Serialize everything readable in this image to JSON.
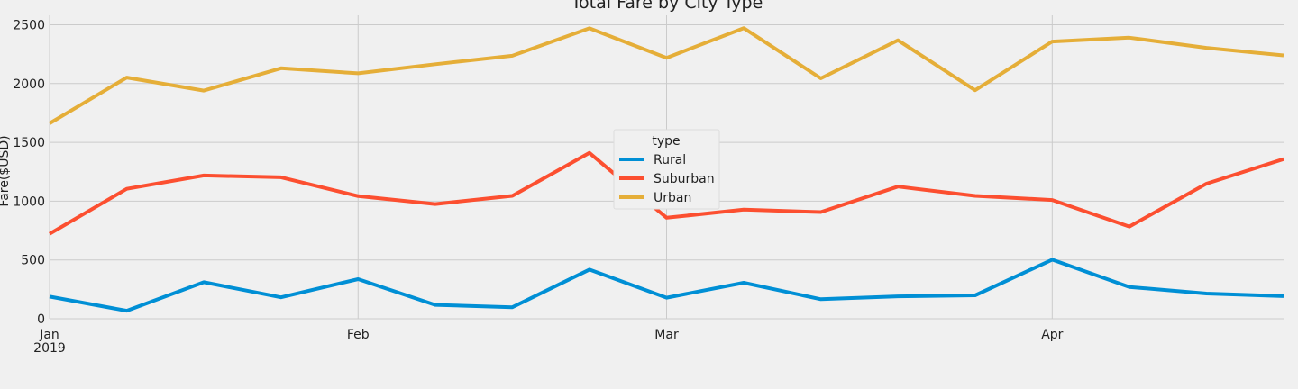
{
  "chart_data": {
    "type": "line",
    "title": "Total Fare by City Type",
    "xlabel": "",
    "ylabel": "Fare($USD)",
    "ylim": [
      0,
      2580
    ],
    "yticks": [
      0,
      500,
      1000,
      1500,
      2000,
      2500
    ],
    "x": [
      "2019-01-06",
      "2019-01-13",
      "2019-01-20",
      "2019-01-27",
      "2019-02-03",
      "2019-02-10",
      "2019-02-17",
      "2019-02-24",
      "2019-03-03",
      "2019-03-10",
      "2019-03-17",
      "2019-03-24",
      "2019-03-31",
      "2019-04-07",
      "2019-04-14",
      "2019-04-21",
      "2019-04-28"
    ],
    "xlim": [
      "2019-01-06",
      "2019-04-28"
    ],
    "xticks": [
      {
        "date": "2019-01-06",
        "label": "Jan",
        "sublabel": "2019"
      },
      {
        "date": "2019-02-03",
        "label": "Feb"
      },
      {
        "date": "2019-03-03",
        "label": "Mar"
      },
      {
        "date": "2019-04-07",
        "label": "Apr"
      }
    ],
    "legend": {
      "title": "type",
      "placement": "center"
    },
    "grid": true,
    "series": [
      {
        "name": "Rural",
        "color": "#008fd5",
        "values": [
          188,
          68,
          311,
          182,
          337,
          118,
          98,
          418,
          179,
          306,
          166,
          191,
          199,
          502,
          270,
          214,
          192
        ]
      },
      {
        "name": "Suburban",
        "color": "#fc4f30",
        "values": [
          722,
          1105,
          1218,
          1203,
          1043,
          975,
          1045,
          1410,
          859,
          928,
          907,
          1124,
          1045,
          1010,
          784,
          1148,
          1357
        ]
      },
      {
        "name": "Urban",
        "color": "#e5ae38",
        "values": [
          1661,
          2051,
          1940,
          2130,
          2087,
          2164,
          2236,
          2470,
          2219,
          2471,
          2044,
          2368,
          1943,
          2357,
          2390,
          2304,
          2239
        ]
      }
    ]
  }
}
